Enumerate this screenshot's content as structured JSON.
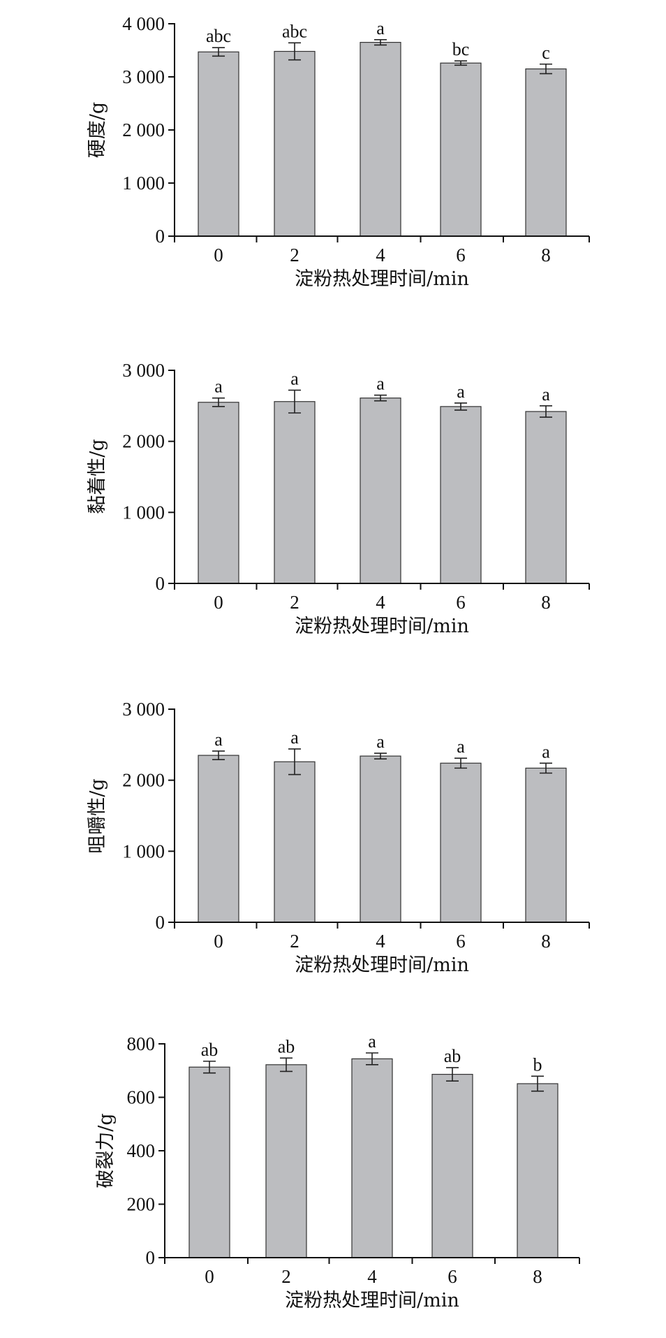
{
  "chart_data": [
    {
      "type": "bar",
      "ylabel": "硬度/g",
      "xlabel": "淀粉热处理时间/min",
      "categories": [
        "0",
        "2",
        "4",
        "6",
        "8"
      ],
      "values": [
        3470,
        3480,
        3650,
        3260,
        3150
      ],
      "errors": [
        80,
        160,
        50,
        40,
        90
      ],
      "significance": [
        "abc",
        "abc",
        "a",
        "bc",
        "c"
      ],
      "ylim": [
        0,
        4000
      ],
      "yticks": [
        0,
        1000,
        2000,
        3000,
        4000
      ],
      "ytick_labels": [
        "0",
        "1 000",
        "2 000",
        "3 000",
        "4 000"
      ],
      "bar_color": "#bcbdc0"
    },
    {
      "type": "bar",
      "ylabel": "黏着性/g",
      "xlabel": "淀粉热处理时间/min",
      "categories": [
        "0",
        "2",
        "4",
        "6",
        "8"
      ],
      "values": [
        2550,
        2560,
        2610,
        2490,
        2420
      ],
      "errors": [
        60,
        160,
        40,
        50,
        80
      ],
      "significance": [
        "a",
        "a",
        "a",
        "a",
        "a"
      ],
      "ylim": [
        0,
        3000
      ],
      "yticks": [
        0,
        1000,
        2000,
        3000
      ],
      "ytick_labels": [
        "0",
        "1 000",
        "2 000",
        "3 000"
      ],
      "bar_color": "#bcbdc0"
    },
    {
      "type": "bar",
      "ylabel": "咀嚼性/g",
      "xlabel": "淀粉热处理时间/min",
      "categories": [
        "0",
        "2",
        "4",
        "6",
        "8"
      ],
      "values": [
        2350,
        2260,
        2340,
        2240,
        2170
      ],
      "errors": [
        60,
        180,
        40,
        70,
        70
      ],
      "significance": [
        "a",
        "a",
        "a",
        "a",
        "a"
      ],
      "ylim": [
        0,
        3000
      ],
      "yticks": [
        0,
        1000,
        2000,
        3000
      ],
      "ytick_labels": [
        "0",
        "1 000",
        "2 000",
        "3 000"
      ],
      "bar_color": "#bcbdc0"
    },
    {
      "type": "bar",
      "ylabel": "破裂力/g",
      "xlabel": "淀粉热处理时间/min",
      "categories": [
        "0",
        "2",
        "4",
        "6",
        "8"
      ],
      "values": [
        713,
        722,
        744,
        686,
        651
      ],
      "errors": [
        22,
        25,
        22,
        25,
        28
      ],
      "significance": [
        "ab",
        "ab",
        "a",
        "ab",
        "b"
      ],
      "ylim": [
        0,
        800
      ],
      "yticks": [
        0,
        200,
        400,
        600,
        800
      ],
      "ytick_labels": [
        "0",
        "200",
        "400",
        "600",
        "800"
      ],
      "bar_color": "#bcbdc0"
    }
  ]
}
